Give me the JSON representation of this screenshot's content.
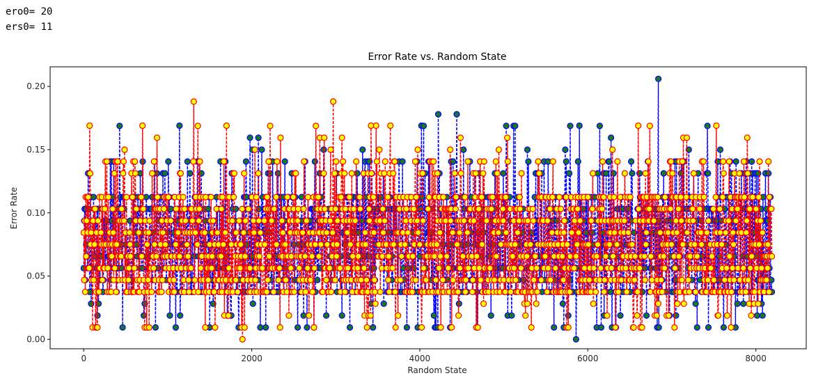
{
  "output": {
    "line1": "ero0= 20",
    "line2": "ers0= 11"
  },
  "chart_data": {
    "type": "line",
    "title": "Error Rate vs. Random State",
    "xlabel": "Random State",
    "ylabel": "Error Rate",
    "xlim": [
      -400,
      8600
    ],
    "ylim": [
      -0.0075,
      0.2155
    ],
    "xticks": [
      0,
      2000,
      4000,
      6000,
      8000
    ],
    "xtick_labels": [
      "0",
      "2000",
      "4000",
      "6000",
      "8000"
    ],
    "yticks": [
      0.0,
      0.05,
      0.1,
      0.15,
      0.2
    ],
    "ytick_labels": [
      "0.00",
      "0.05",
      "0.10",
      "0.15",
      "0.20"
    ],
    "grid": false,
    "x_range": [
      0,
      8191
    ],
    "series": [
      {
        "line_color": "#0000ff",
        "line_style": "dashed",
        "marker": "circle",
        "marker_fill": "#1a7a1a",
        "marker_edge": "#0000ff",
        "notable_points": [
          {
            "x": 6840,
            "y": 0.206
          },
          {
            "x": 5860,
            "y": 0.0
          },
          {
            "x": 4220,
            "y": 0.178
          },
          {
            "x": 4440,
            "y": 0.178
          },
          {
            "x": 1140,
            "y": 0.169
          },
          {
            "x": 4020,
            "y": 0.169
          },
          {
            "x": 5900,
            "y": 0.169
          }
        ]
      },
      {
        "line_color": "#ff0000",
        "line_style": "dashed",
        "marker": "circle",
        "marker_fill": "#ffff00",
        "marker_edge": "#ff0000",
        "notable_points": [
          {
            "x": 1310,
            "y": 0.188
          },
          {
            "x": 2970,
            "y": 0.188
          },
          {
            "x": 1890,
            "y": 0.0
          },
          {
            "x": 70,
            "y": 0.169
          },
          {
            "x": 700,
            "y": 0.169
          },
          {
            "x": 1700,
            "y": 0.169
          },
          {
            "x": 3420,
            "y": 0.169
          },
          {
            "x": 3480,
            "y": 0.169
          },
          {
            "x": 3650,
            "y": 0.169
          },
          {
            "x": 6600,
            "y": 0.169
          },
          {
            "x": 7530,
            "y": 0.169
          }
        ]
      }
    ]
  }
}
